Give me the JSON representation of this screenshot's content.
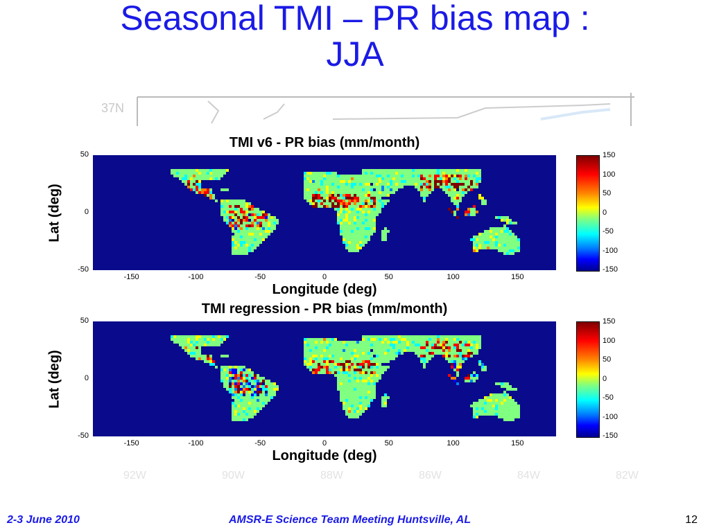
{
  "slide": {
    "title_line1": "Seasonal TMI – PR bias map :",
    "title_line2": "JJA",
    "footer_left": "2-3 June 2010",
    "footer_center": "AMSR-E Science Team Meeting  Huntsville, AL",
    "page_number": "12",
    "ghost_lat_label": "37N",
    "ghost_lon_labels": [
      "92W",
      "90W",
      "88W",
      "86W",
      "84W",
      "82W"
    ]
  },
  "chart_data": [
    {
      "type": "heatmap",
      "title": "TMI v6 - PR bias (mm/month)",
      "xlabel": "Longitude (deg)",
      "ylabel": "Lat (deg)",
      "xlim": [
        -180,
        180
      ],
      "ylim": [
        -50,
        50
      ],
      "xticks": [
        "-150",
        "-100",
        "-50",
        "0",
        "50",
        "100",
        "150"
      ],
      "yticks": [
        "50",
        "0",
        "-50"
      ],
      "colorbar": {
        "min": -150,
        "max": 150,
        "ticks": [
          "150",
          "100",
          "50",
          "0",
          "-50",
          "-100",
          "-150"
        ]
      }
    },
    {
      "type": "heatmap",
      "title": "TMI regression - PR bias (mm/month)",
      "xlabel": "Longitude (deg)",
      "ylabel": "Lat (deg)",
      "xlim": [
        -180,
        180
      ],
      "ylim": [
        -50,
        50
      ],
      "xticks": [
        "-150",
        "-100",
        "-50",
        "0",
        "50",
        "100",
        "150"
      ],
      "yticks": [
        "50",
        "0",
        "-50"
      ],
      "colorbar": {
        "min": -150,
        "max": 150,
        "ticks": [
          "150",
          "100",
          "50",
          "0",
          "-50",
          "-100",
          "-150"
        ]
      }
    }
  ],
  "colors": {
    "title": "#1a1ae6",
    "ocean": "#0a0a8c",
    "land": "#55e87a"
  }
}
